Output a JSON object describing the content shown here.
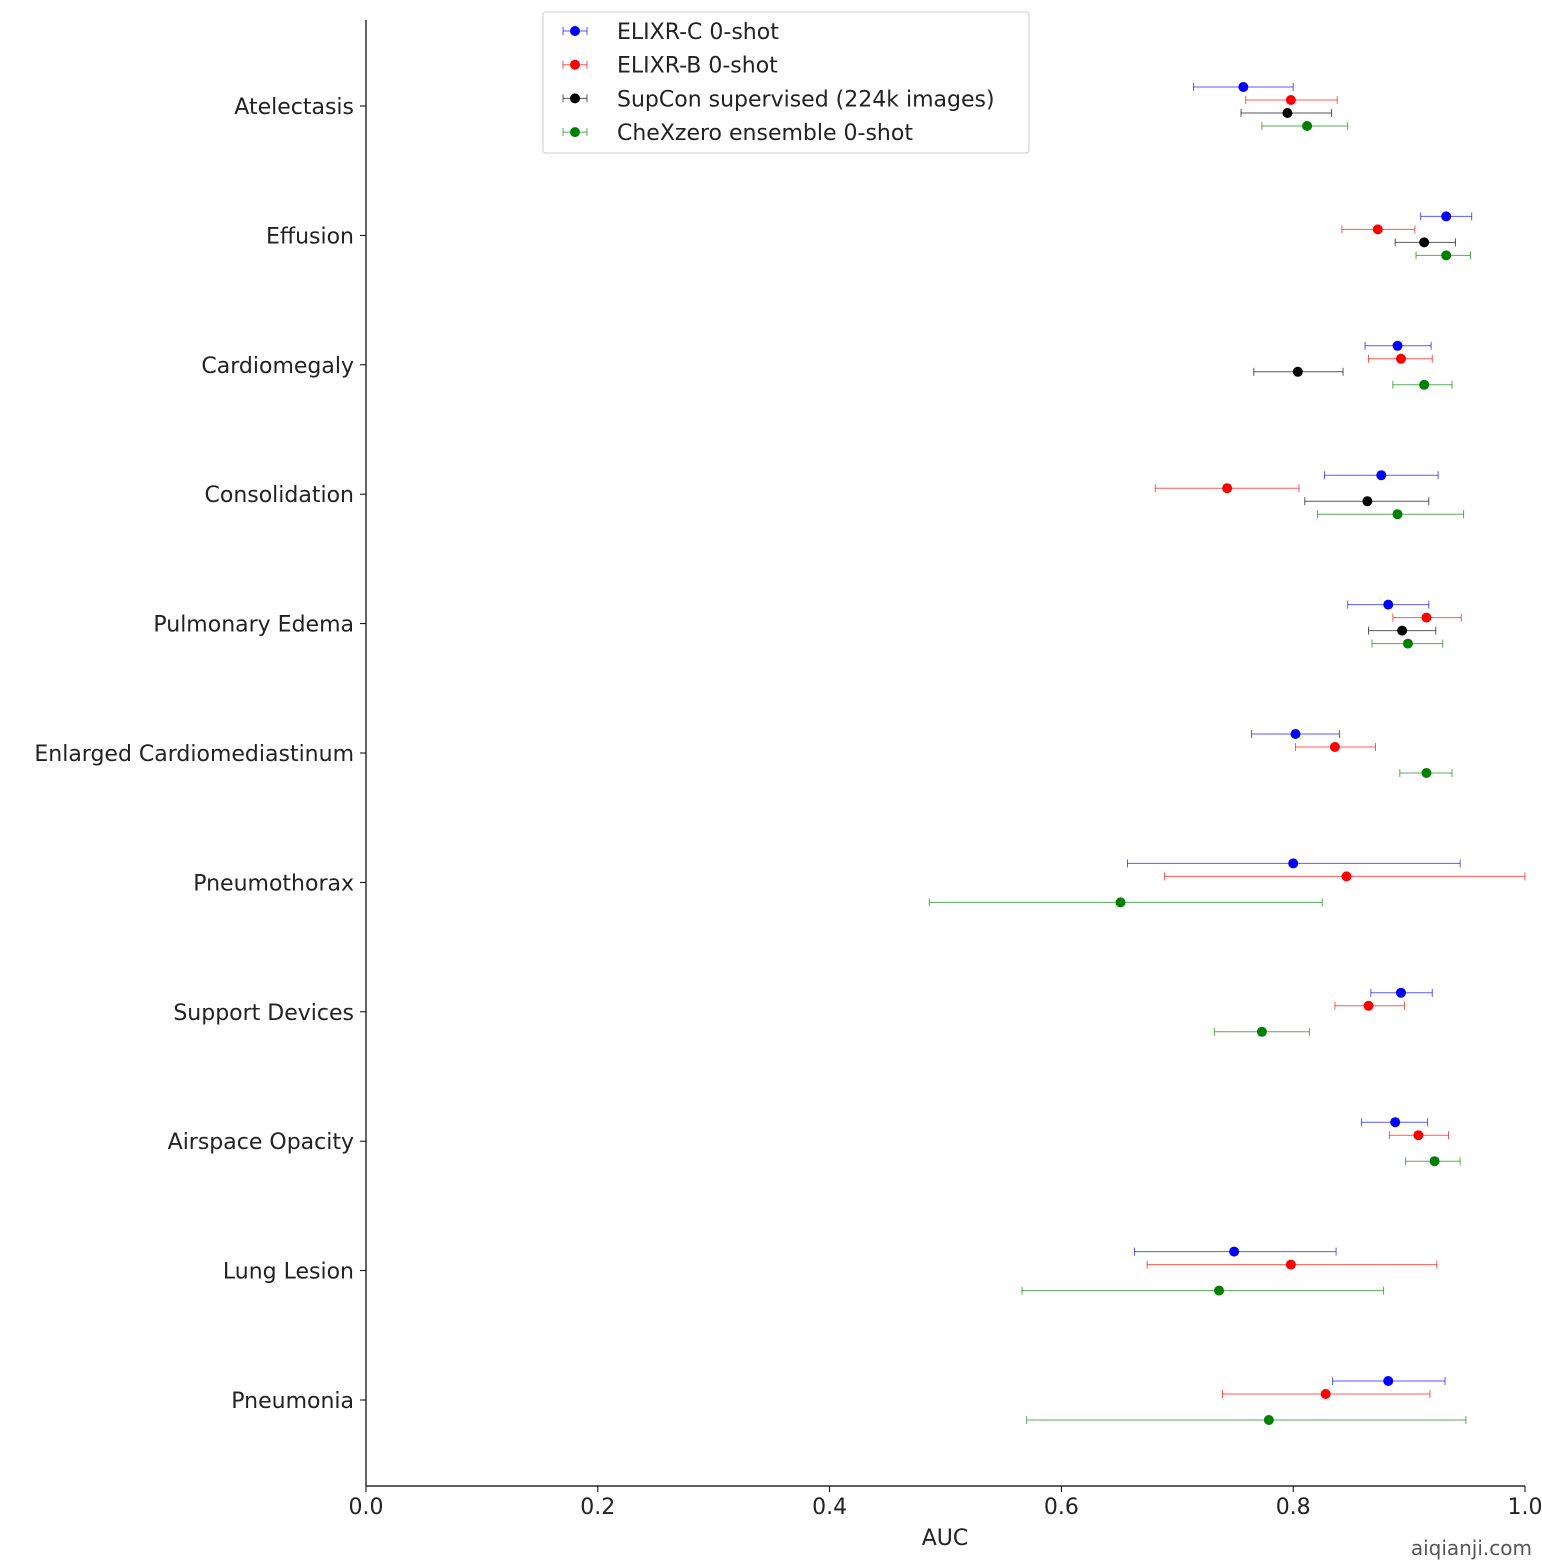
{
  "chart_data": {
    "type": "scatter",
    "subtype": "dot-with-horizontal-error-bars",
    "xlabel": "AUC",
    "ylabel": "",
    "xlim": [
      0.0,
      1.0
    ],
    "xticks": [
      "0.0",
      "0.2",
      "0.4",
      "0.6",
      "0.8",
      "1.0"
    ],
    "grid": false,
    "legend_position": "top-center",
    "categories": [
      "Atelectasis",
      "Effusion",
      "Cardiomegaly",
      "Consolidation",
      "Pulmonary Edema",
      "Enlarged Cardiomediastinum",
      "Pneumothorax",
      "Support Devices",
      "Airspace Opacity",
      "Lung Lesion",
      "Pneumonia"
    ],
    "series": [
      {
        "name": "ELIXR-C 0-shot",
        "color": "#0000ff",
        "values": [
          0.757,
          0.932,
          0.89,
          0.876,
          0.882,
          0.802,
          0.8,
          0.893,
          0.888,
          0.749,
          0.882
        ],
        "ci_low": [
          0.714,
          0.91,
          0.862,
          0.827,
          0.847,
          0.764,
          0.657,
          0.867,
          0.859,
          0.663,
          0.834
        ],
        "ci_high": [
          0.8,
          0.954,
          0.919,
          0.925,
          0.917,
          0.84,
          0.944,
          0.92,
          0.916,
          0.837,
          0.931
        ]
      },
      {
        "name": "ELIXR-B 0-shot",
        "color": "#ff0000",
        "values": [
          0.798,
          0.873,
          0.893,
          0.743,
          0.915,
          0.836,
          0.846,
          0.865,
          0.908,
          0.798,
          0.828
        ],
        "ci_low": [
          0.759,
          0.842,
          0.865,
          0.681,
          0.886,
          0.802,
          0.689,
          0.836,
          0.883,
          0.674,
          0.739
        ],
        "ci_high": [
          0.838,
          0.905,
          0.92,
          0.805,
          0.945,
          0.871,
          1.0,
          0.896,
          0.934,
          0.924,
          0.918
        ]
      },
      {
        "name": "SupCon supervised (224k images)",
        "color": "#000000",
        "values": [
          0.795,
          0.913,
          0.804,
          0.864,
          0.894,
          null,
          null,
          null,
          null,
          null,
          null
        ],
        "ci_low": [
          0.755,
          0.888,
          0.766,
          0.81,
          0.865,
          null,
          null,
          null,
          null,
          null,
          null
        ],
        "ci_high": [
          0.833,
          0.94,
          0.843,
          0.917,
          0.923,
          null,
          null,
          null,
          null,
          null,
          null
        ]
      },
      {
        "name": "CheXzero ensemble 0-shot",
        "color": "#008000",
        "values": [
          0.812,
          0.932,
          0.913,
          0.89,
          0.899,
          0.915,
          0.651,
          0.773,
          0.922,
          0.736,
          0.779
        ],
        "ci_low": [
          0.773,
          0.906,
          0.886,
          0.821,
          0.868,
          0.892,
          0.486,
          0.732,
          0.897,
          0.566,
          0.57
        ],
        "ci_high": [
          0.847,
          0.953,
          0.937,
          0.947,
          0.929,
          0.937,
          0.825,
          0.814,
          0.944,
          0.878,
          0.949
        ]
      }
    ]
  },
  "watermark": "aiqianji.com"
}
